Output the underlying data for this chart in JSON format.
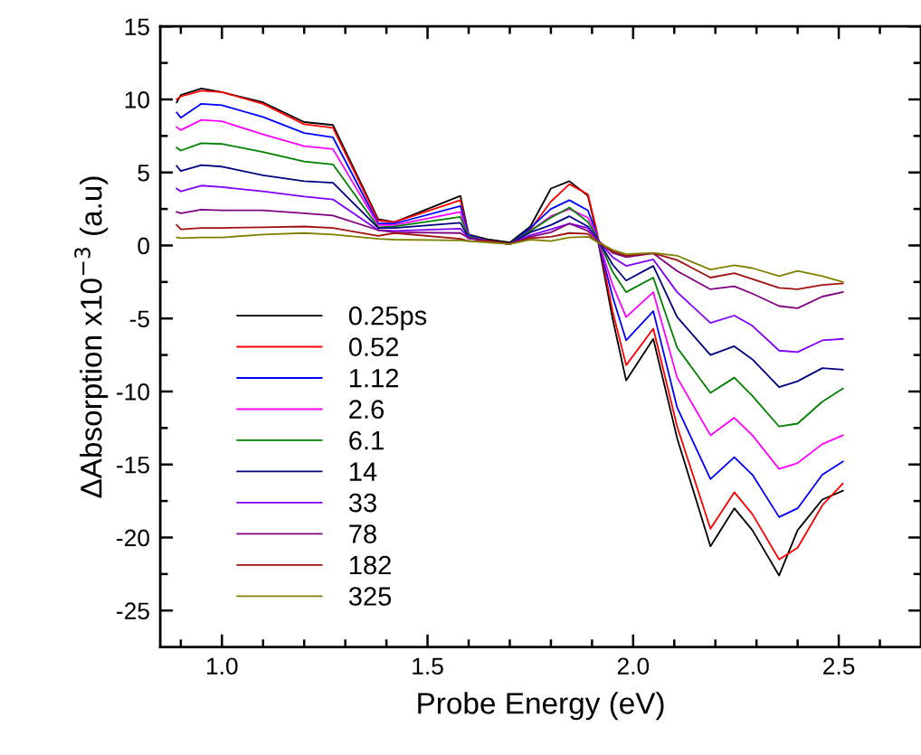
{
  "chart_data": {
    "type": "line",
    "xlabel": "Probe Energy (eV)",
    "ylabel": "ΔAbsorption x10$^{−3}$ (a.u)",
    "x": [
      0.89,
      0.9,
      0.95,
      1.0,
      1.1,
      1.2,
      1.27,
      1.38,
      1.42,
      1.58,
      1.6,
      1.65,
      1.7,
      1.75,
      1.8,
      1.845,
      1.89,
      1.91,
      1.95,
      1.983,
      2.049,
      2.107,
      2.188,
      2.246,
      2.29,
      2.355,
      2.4,
      2.46,
      2.51
    ],
    "series": [
      {
        "name": "0.25ps",
        "color": "#000000",
        "values": [
          9.8,
          10.3,
          10.75,
          10.5,
          9.8,
          8.45,
          8.25,
          1.8,
          1.6,
          3.4,
          0.75,
          0.4,
          0.2,
          1.3,
          3.9,
          4.4,
          3.4,
          1.0,
          -5.0,
          -9.25,
          -6.4,
          -13.2,
          -20.6,
          -18.0,
          -19.5,
          -22.6,
          -19.5,
          -17.4,
          -16.8
        ]
      },
      {
        "name": "0.52",
        "color": "#ff0000",
        "values": [
          10.0,
          10.2,
          10.6,
          10.5,
          9.7,
          8.3,
          8.05,
          1.7,
          1.6,
          3.1,
          0.7,
          0.3,
          0.1,
          1.1,
          3.0,
          4.2,
          3.5,
          1.2,
          -4.5,
          -8.2,
          -5.7,
          -12.4,
          -19.4,
          -16.9,
          -18.4,
          -21.5,
          -20.7,
          -17.8,
          -16.3
        ]
      },
      {
        "name": "1.12",
        "color": "#0000ff",
        "values": [
          9.1,
          8.75,
          9.7,
          9.6,
          8.8,
          7.7,
          7.4,
          1.5,
          1.5,
          2.7,
          0.7,
          0.3,
          0.1,
          1.2,
          2.5,
          3.1,
          2.4,
          0.9,
          -3.5,
          -6.5,
          -4.5,
          -11.1,
          -16.0,
          -14.5,
          -15.7,
          -18.6,
          -18.0,
          -15.7,
          -14.8
        ]
      },
      {
        "name": "2.6",
        "color": "#ff00ff",
        "values": [
          8.1,
          7.9,
          8.6,
          8.5,
          7.6,
          6.8,
          6.6,
          1.4,
          1.4,
          2.3,
          0.6,
          0.3,
          0.1,
          1.0,
          2.0,
          2.5,
          1.9,
          0.8,
          -2.7,
          -4.9,
          -3.2,
          -9.05,
          -13.0,
          -11.8,
          -13.0,
          -15.3,
          -14.9,
          -13.6,
          -13.0
        ]
      },
      {
        "name": "6.1",
        "color": "#008000",
        "values": [
          6.7,
          6.5,
          7.0,
          6.95,
          6.4,
          5.75,
          5.55,
          1.25,
          1.3,
          1.95,
          0.6,
          0.3,
          0.1,
          1.0,
          1.9,
          2.6,
          1.6,
          0.7,
          -1.8,
          -3.2,
          -2.2,
          -7.0,
          -10.1,
          -9.05,
          -10.3,
          -12.4,
          -12.2,
          -10.7,
          -9.8
        ]
      },
      {
        "name": "14",
        "color": "#000080",
        "values": [
          5.45,
          5.1,
          5.5,
          5.4,
          4.8,
          4.4,
          4.3,
          1.2,
          1.2,
          1.55,
          0.5,
          0.3,
          0.1,
          0.9,
          1.4,
          2.0,
          1.3,
          0.6,
          -1.3,
          -2.4,
          -1.4,
          -4.9,
          -7.5,
          -6.9,
          -7.8,
          -9.7,
          -9.3,
          -8.4,
          -8.5
        ]
      },
      {
        "name": "33",
        "color": "#8000ff",
        "values": [
          3.9,
          3.7,
          4.1,
          4.0,
          3.7,
          3.35,
          3.15,
          1.05,
          1.0,
          1.15,
          0.5,
          0.3,
          0.1,
          0.7,
          1.1,
          1.5,
          1.2,
          0.5,
          -0.8,
          -1.4,
          -0.96,
          -3.2,
          -5.3,
          -4.8,
          -5.5,
          -7.2,
          -7.3,
          -6.5,
          -6.4
        ]
      },
      {
        "name": "78",
        "color": "#800080",
        "values": [
          2.3,
          2.2,
          2.45,
          2.4,
          2.4,
          2.2,
          2.05,
          1.05,
          0.9,
          0.85,
          0.5,
          0.3,
          0.1,
          0.6,
          0.9,
          1.5,
          1.0,
          0.45,
          -0.5,
          -0.8,
          -0.54,
          -1.75,
          -3.0,
          -2.8,
          -3.3,
          -4.15,
          -4.3,
          -3.5,
          -3.2
        ]
      },
      {
        "name": "182",
        "color": "#a01010",
        "values": [
          1.4,
          1.1,
          1.2,
          1.2,
          1.25,
          1.3,
          1.2,
          0.65,
          0.85,
          0.45,
          0.3,
          0.3,
          0.1,
          0.5,
          0.6,
          0.85,
          0.8,
          0.3,
          -0.4,
          -0.7,
          -0.54,
          -1.0,
          -2.2,
          -1.9,
          -2.3,
          -2.9,
          -3.0,
          -2.7,
          -2.6
        ]
      },
      {
        "name": "325",
        "color": "#808000",
        "values": [
          0.55,
          0.5,
          0.55,
          0.55,
          0.75,
          0.85,
          0.75,
          0.45,
          0.4,
          0.35,
          0.3,
          0.2,
          0.1,
          0.4,
          0.3,
          0.55,
          0.6,
          0.3,
          -0.3,
          -0.6,
          -0.5,
          -0.7,
          -1.65,
          -1.35,
          -1.55,
          -2.1,
          -1.75,
          -2.1,
          -2.5
        ]
      }
    ],
    "xlim": [
      0.85,
      2.7
    ],
    "ylim": [
      -27.5,
      15
    ],
    "xticks": [
      {
        "value": 0.9,
        "label": null
      },
      {
        "value": 1.0,
        "label": "1.0"
      },
      {
        "value": 1.1,
        "label": null
      },
      {
        "value": 1.2,
        "label": null
      },
      {
        "value": 1.3,
        "label": null
      },
      {
        "value": 1.4,
        "label": null
      },
      1.5,
      {
        "value": 1.6,
        "label": null
      },
      {
        "value": 1.7,
        "label": null
      },
      {
        "value": 1.8,
        "label": null
      },
      {
        "value": 1.9,
        "label": null
      },
      {
        "value": 2.0,
        "label": "2.0"
      },
      {
        "value": 2.1,
        "label": null
      },
      {
        "value": 2.2,
        "label": null
      },
      {
        "value": 2.3,
        "label": null
      },
      {
        "value": 2.4,
        "label": null
      },
      2.5,
      {
        "value": 2.6,
        "label": null
      }
    ],
    "yticks": [
      -25,
      {
        "value": -22.5,
        "label": null
      },
      -20,
      {
        "value": -17.5,
        "label": null
      },
      -15,
      {
        "value": -12.5,
        "label": null
      },
      -10,
      {
        "value": -7.5,
        "label": null
      },
      -5,
      {
        "value": -2.5,
        "label": null
      },
      0,
      {
        "value": 2.5,
        "label": null
      },
      5,
      {
        "value": 7.5,
        "label": null
      },
      10,
      {
        "value": 12.5,
        "label": null
      },
      15
    ],
    "grid": false,
    "legend": "bottom left",
    "marker": "none",
    "line_style": "solid"
  }
}
